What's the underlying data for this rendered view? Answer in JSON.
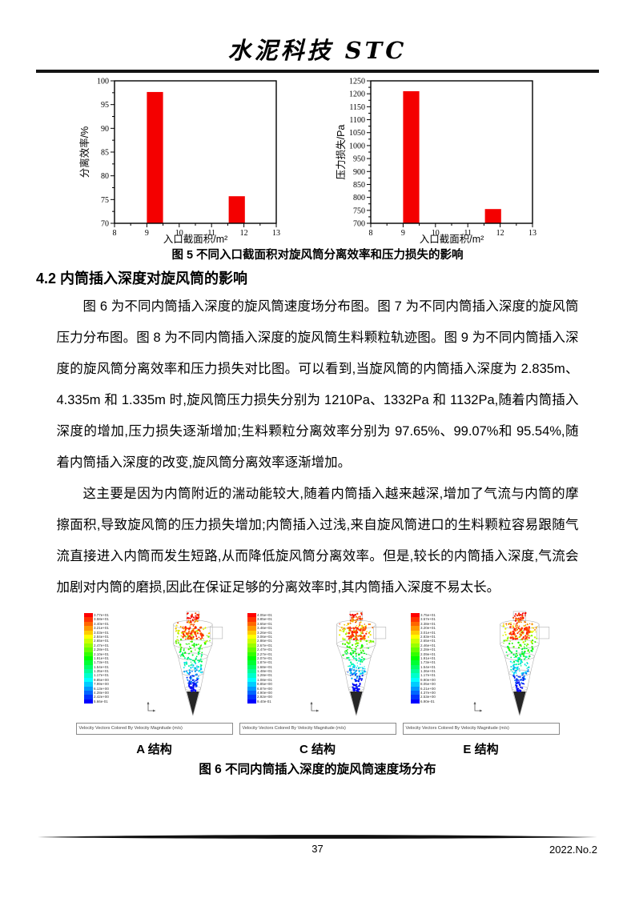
{
  "page": {
    "header_title": "水泥科技 STC",
    "footer": {
      "page_number": "37",
      "issue": "2022.No.2"
    }
  },
  "figure5": {
    "caption": "图 5 不同入口截面积对旋风筒分离效率和压力损失的影响"
  },
  "section": {
    "heading": "4.2 内筒插入深度对旋风筒的影响"
  },
  "paragraphs": [
    "图 6 为不同内筒插入深度的旋风筒速度场分布图。图 7 为不同内筒插入深度的旋风筒压力分布图。图 8 为不同内筒插入深度的旋风筒生料颗粒轨迹图。图 9 为不同内筒插入深度的旋风筒分离效率和压力损失对比图。可以看到,当旋风筒的内筒插入深度为 2.835m、4.335m 和 1.335m 时,旋风筒压力损失分别为 1210Pa、1332Pa 和 1132Pa,随着内筒插入深度的增加,压力损失逐渐增加;生料颗粒分离效率分别为 97.65%、99.07%和 95.54%,随着内筒插入深度的改变,旋风筒分离效率逐渐增加。",
    "这主要是因为内筒附近的湍动能较大,随着内筒插入越来越深,增加了气流与内筒的摩擦面积,导致旋风筒的压力损失增加;内筒插入过浅,来自旋风筒进口的生料颗粒容易跟随气流直接进入内筒而发生短路,从而降低旋风筒分离效率。但是,较长的内筒插入深度,气流会加剧对内筒的磨损,因此在保证足够的分离效率时,其内筒插入深度不易太长。"
  ],
  "figure6": {
    "caption": "图 6 不同内筒插入深度的旋风筒速度场分布",
    "panels": [
      {
        "label": "A 结构",
        "legend_title": "Velocity Vectors Colored By Velocity Magnitude (m/s)",
        "colorbar_values": [
          "3.77e+01",
          "3.58e+01",
          "3.40e+01",
          "3.21e+01",
          "3.03e+01",
          "2.84e+01",
          "2.65e+01",
          "2.47e+01",
          "2.28e+01",
          "2.10e+01",
          "1.91e+01",
          "1.73e+01",
          "1.54e+01",
          "1.35e+01",
          "1.17e+01",
          "9.85e+00",
          "7.99e+00",
          "6.13e+00",
          "4.28e+00",
          "2.42e+00",
          "5.66e-01"
        ]
      },
      {
        "label": "C 结构",
        "legend_title": "Velocity Vectors Colored By Velocity Magnitude (m/s)",
        "colorbar_values": [
          "4.05e+01",
          "3.85e+01",
          "3.65e+01",
          "3.46e+01",
          "3.26e+01",
          "3.06e+01",
          "2.86e+01",
          "2.67e+01",
          "2.47e+01",
          "2.27e+01",
          "2.07e+01",
          "1.87e+01",
          "1.68e+01",
          "1.48e+01",
          "1.28e+01",
          "1.08e+01",
          "8.85e+00",
          "6.87e+00",
          "4.90e+00",
          "2.92e+00",
          "9.40e-01"
        ]
      },
      {
        "label": "E 结构",
        "legend_title": "Velocity Vectors Colored By Velocity Magnitude (m/s)",
        "colorbar_values": [
          "3.75e+01",
          "3.57e+01",
          "3.38e+01",
          "3.20e+01",
          "3.01e+01",
          "2.83e+01",
          "2.65e+01",
          "2.46e+01",
          "2.28e+01",
          "2.09e+01",
          "1.91e+01",
          "1.73e+01",
          "1.54e+01",
          "1.36e+01",
          "1.17e+01",
          "9.90e+00",
          "8.05e+00",
          "6.21e+00",
          "4.37e+00",
          "2.53e+00",
          "6.90e-01"
        ]
      }
    ]
  },
  "chart_data": [
    {
      "type": "bar",
      "title": "",
      "xlabel": "入口截面积/m²",
      "ylabel": "分离效率/%",
      "xlim": [
        8,
        13
      ],
      "ylim": [
        70,
        100
      ],
      "x_major_ticks": [
        8,
        9,
        10,
        11,
        12,
        13
      ],
      "y_major_ticks": [
        70,
        75,
        80,
        85,
        90,
        95,
        100
      ],
      "x_minor_step": 0.5,
      "y_minor_step": 2.5,
      "bar_width": 0.5,
      "bar_color": "#f40000",
      "bars": [
        {
          "x": 9.25,
          "value": 97.65
        },
        {
          "x": 11.78,
          "value": 75.7
        }
      ]
    },
    {
      "type": "bar",
      "title": "",
      "xlabel": "入口截面积/m²",
      "ylabel": "压力损失/Pa",
      "xlim": [
        8,
        13
      ],
      "ylim": [
        700,
        1250
      ],
      "x_major_ticks": [
        8,
        9,
        10,
        11,
        12,
        13
      ],
      "y_major_ticks": [
        700,
        750,
        800,
        850,
        900,
        950,
        1000,
        1050,
        1100,
        1150,
        1200,
        1250
      ],
      "x_minor_step": 0.5,
      "y_minor_step": 25,
      "bar_width": 0.5,
      "bar_color": "#f40000",
      "bars": [
        {
          "x": 9.25,
          "value": 1210
        },
        {
          "x": 11.78,
          "value": 755
        }
      ]
    }
  ]
}
